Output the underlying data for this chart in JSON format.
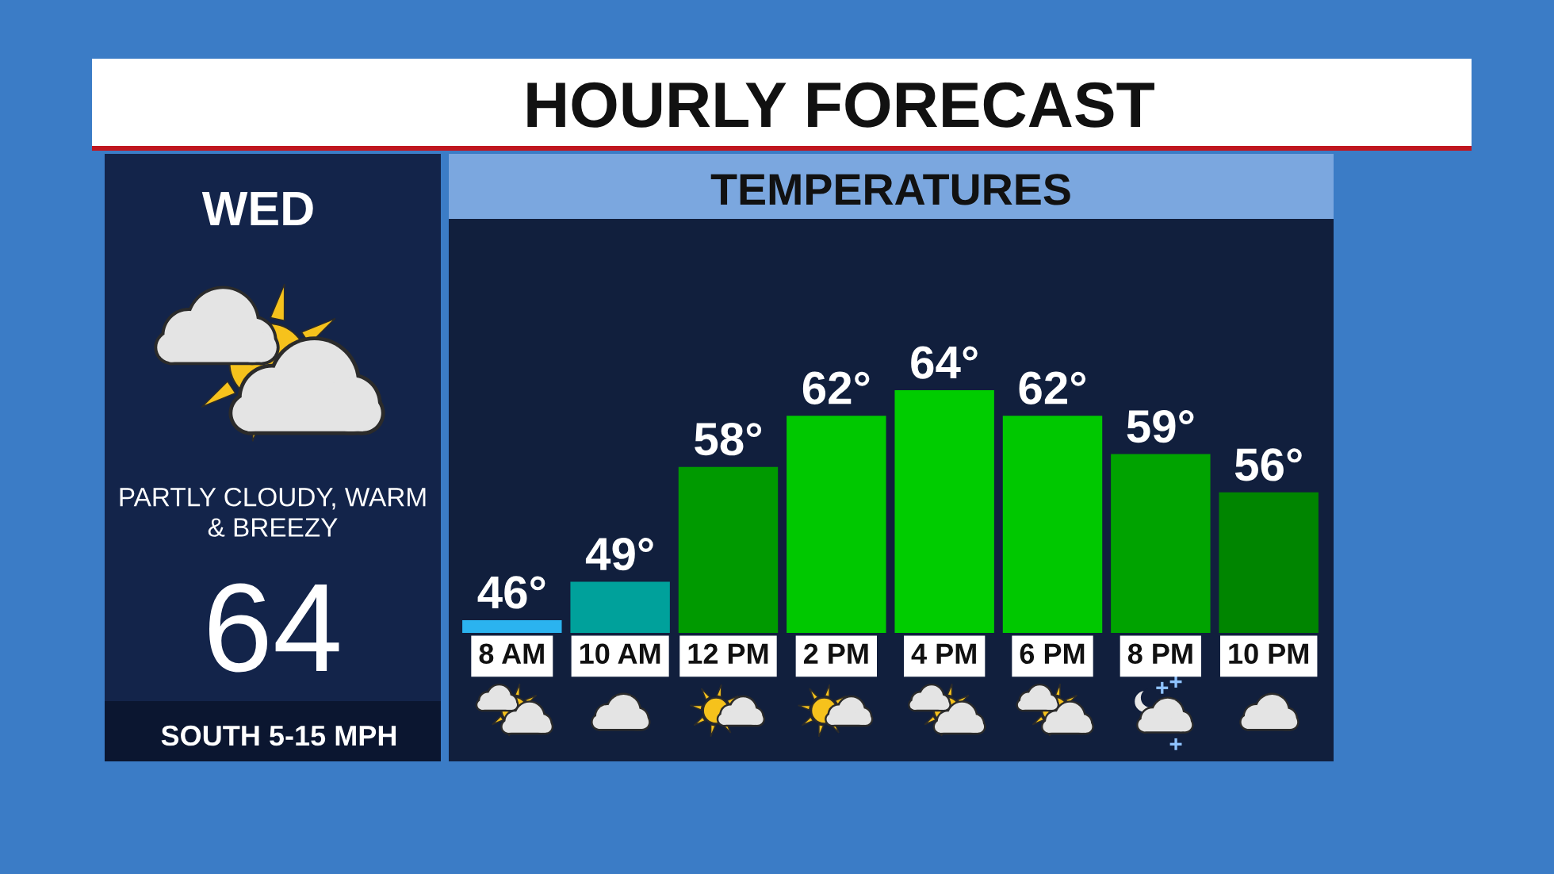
{
  "chart_data": {
    "type": "bar",
    "title": "HOURLY FORECAST",
    "subtitle": "TEMPERATURES",
    "categories": [
      "8 AM",
      "10 AM",
      "12 PM",
      "2 PM",
      "4 PM",
      "6 PM",
      "8 PM",
      "10 PM"
    ],
    "values": [
      46,
      49,
      58,
      62,
      64,
      62,
      59,
      56
    ],
    "colors": [
      "#2bb3ef",
      "#00a19b",
      "#009a00",
      "#00c800",
      "#00cc00",
      "#00c800",
      "#00a300",
      "#008500"
    ],
    "value_labels": [
      "46°",
      "49°",
      "58°",
      "62°",
      "64°",
      "62°",
      "59°",
      "56°"
    ],
    "ylim": [
      45,
      64
    ],
    "tick_labels": "x",
    "annotations": [
      "WED",
      "PARTLY CLOUDY, WARM & BREEZY",
      "64",
      "SOUTH 5-15 MPH"
    ]
  }
}
